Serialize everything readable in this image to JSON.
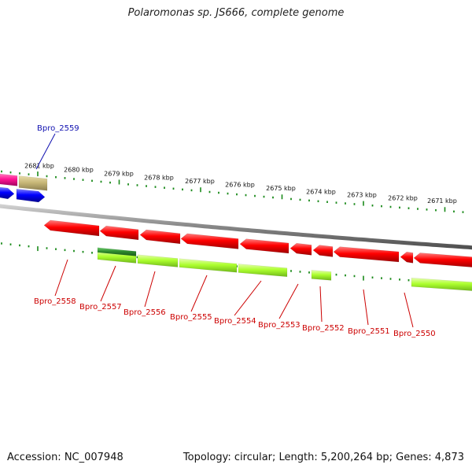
{
  "title": "Polaromonas sp. JS666, complete genome",
  "footer": {
    "accession": "Accession: NC_007948",
    "summary": "Topology: circular; Length: 5,200,264 bp; Genes: 4,873"
  },
  "colors": {
    "forward_gene": "#ff0000",
    "cds_green": "#adff2f",
    "cds_dark_green": "#2e8b2e",
    "backbone": "#8c8c8c",
    "tick": "#1a8a1a",
    "label_red": "#cc0000",
    "label_blue": "#1010b0",
    "magenta": "#ff1493",
    "khaki": "#c8b878",
    "blue": "#0000ff"
  },
  "scale_ticks": [
    "2681 kbp",
    "2680 kbp",
    "2679 kbp",
    "2678 kbp",
    "2677 kbp",
    "2676 kbp",
    "2675 kbp",
    "2674 kbp",
    "2673 kbp",
    "2672 kbp",
    "2671 kbp"
  ],
  "genes": [
    {
      "name": "Bpro_2559",
      "color": "blue"
    },
    {
      "name": "Bpro_2558",
      "color": "red"
    },
    {
      "name": "Bpro_2557",
      "color": "red"
    },
    {
      "name": "Bpro_2556",
      "color": "red"
    },
    {
      "name": "Bpro_2555",
      "color": "red"
    },
    {
      "name": "Bpro_2554",
      "color": "red"
    },
    {
      "name": "Bpro_2553",
      "color": "red"
    },
    {
      "name": "Bpro_2552",
      "color": "red"
    },
    {
      "name": "Bpro_2551",
      "color": "red"
    },
    {
      "name": "Bpro_2550",
      "color": "red"
    }
  ]
}
